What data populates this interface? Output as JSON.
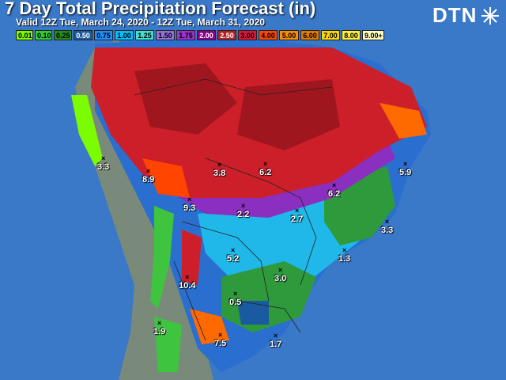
{
  "title": "7 Day Total Precipitation Forecast (in)",
  "subtitle": "Valid 12Z Tue, March 24, 2020 - 12Z Tue, March 31, 2020",
  "logo": "DTN",
  "legend": [
    {
      "label": "0.01",
      "color": "#7cfc00"
    },
    {
      "label": "0.10",
      "color": "#32cd32"
    },
    {
      "label": "0.25",
      "color": "#228b22"
    },
    {
      "label": "0.50",
      "color": "#1e5aa0"
    },
    {
      "label": "0.75",
      "color": "#1e90ff"
    },
    {
      "label": "1.00",
      "color": "#00bfff"
    },
    {
      "label": "1.25",
      "color": "#40e0d0"
    },
    {
      "label": "1.50",
      "color": "#9370db"
    },
    {
      "label": "1.75",
      "color": "#9932cc"
    },
    {
      "label": "2.00",
      "color": "#8b008b"
    },
    {
      "label": "2.50",
      "color": "#b22222"
    },
    {
      "label": "3.00",
      "color": "#dc143c"
    },
    {
      "label": "4.00",
      "color": "#ff4500"
    },
    {
      "label": "5.00",
      "color": "#ff8c00"
    },
    {
      "label": "6.00",
      "color": "#e07b00"
    },
    {
      "label": "7.00",
      "color": "#ffd700"
    },
    {
      "label": "8.00",
      "color": "#ffef40"
    },
    {
      "label": "9.00+",
      "color": "#ffffc0"
    }
  ],
  "points": [
    {
      "label": "3.3"
    },
    {
      "label": "8.9"
    },
    {
      "label": "3.8"
    },
    {
      "label": "6.2"
    },
    {
      "label": "5.9"
    },
    {
      "label": "6.2"
    },
    {
      "label": "9.3"
    },
    {
      "label": "2.2"
    },
    {
      "label": "2.7"
    },
    {
      "label": "3.3"
    },
    {
      "label": "5.2"
    },
    {
      "label": "1.3"
    },
    {
      "label": "3.0"
    },
    {
      "label": "10.4"
    },
    {
      "label": "0.5"
    },
    {
      "label": "1.9"
    },
    {
      "label": "7.5"
    },
    {
      "label": "1.7"
    }
  ]
}
